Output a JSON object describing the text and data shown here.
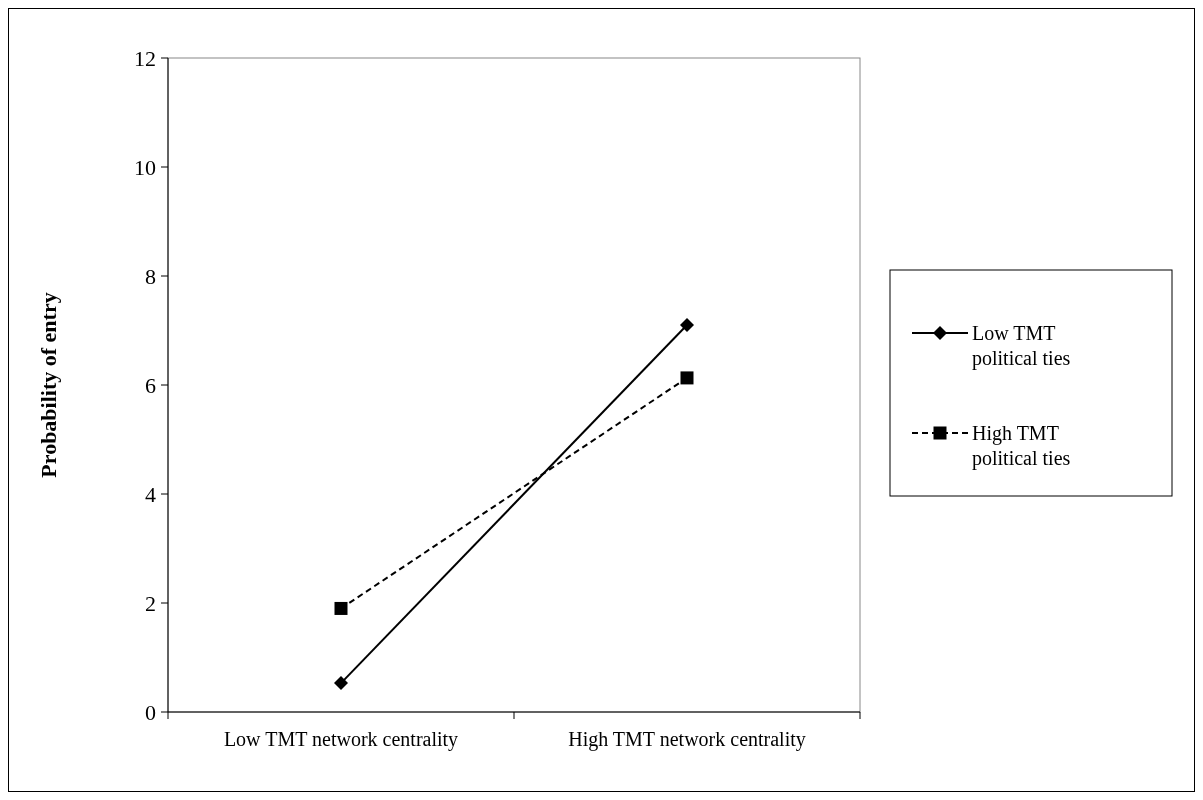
{
  "chart_data": {
    "type": "line",
    "ylabel": "Probability of entry",
    "categories": [
      "Low TMT network centrality",
      "High TMT network centrality"
    ],
    "ylim": [
      0,
      12
    ],
    "yticks": [
      0,
      2,
      4,
      6,
      8,
      10,
      12
    ],
    "grid": false,
    "legend": "right",
    "series": [
      {
        "name": "Low TMT political ties",
        "color": "#000000",
        "values": [
          0.53,
          7.1
        ],
        "marker": "diamond",
        "line_style": "solid"
      },
      {
        "name": "High TMT political ties",
        "color": "#000000",
        "values": [
          1.9,
          6.13
        ],
        "marker": "square",
        "line_style": "dashed"
      }
    ]
  }
}
